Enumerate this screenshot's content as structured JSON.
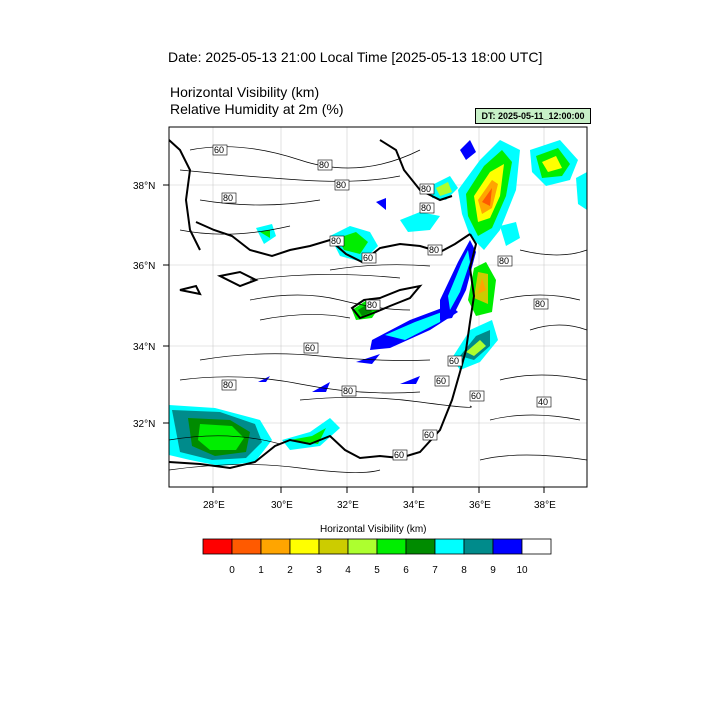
{
  "header": {
    "date_line": "Date: 2025-05-13  21:00 Local Time [2025-05-13  18:00 UTC]",
    "variable_1": "Horizontal Visibility   (km)",
    "variable_2": "Relative Humidity at 2m   (%)",
    "dt_label": "DT: 2025-05-11_12:00:00"
  },
  "map": {
    "lat_ticks": [
      "38°N",
      "36°N",
      "34°N",
      "32°N"
    ],
    "lon_ticks": [
      "28°E",
      "30°E",
      "32°E",
      "34°E",
      "36°E",
      "38°E"
    ],
    "contour_labels": [
      "60",
      "80",
      "80",
      "80",
      "80",
      "80",
      "80",
      "60",
      "80",
      "80",
      "80",
      "80",
      "60",
      "60",
      "80",
      "80",
      "60",
      "60",
      "40",
      "60",
      "60"
    ]
  },
  "colorbar": {
    "title": "Horizontal Visibility  (km)",
    "labels": [
      "0",
      "1",
      "2",
      "3",
      "4",
      "5",
      "6",
      "7",
      "8",
      "9",
      "10"
    ],
    "colors": [
      "#ff0000",
      "#ff5a00",
      "#ffa500",
      "#ffff00",
      "#cccc00",
      "#adff2f",
      "#00ee00",
      "#008b00",
      "#00ffff",
      "#008b8b",
      "#0000ff",
      "#ffffff"
    ]
  }
}
